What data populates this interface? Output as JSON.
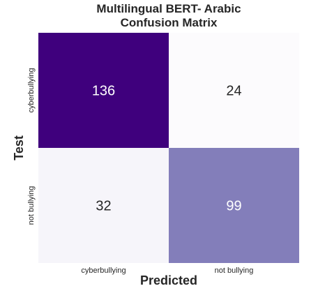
{
  "chart_data": {
    "type": "heatmap",
    "title_lines": [
      "Multilingual BERT- Arabic",
      "Confusion Matrix"
    ],
    "xlabel": "Predicted",
    "ylabel": "Test",
    "x_categories": [
      "cyberbullying",
      "not bullying"
    ],
    "y_categories": [
      "cyberbullying",
      "not bullying"
    ],
    "values": [
      [
        136,
        24
      ],
      [
        32,
        99
      ]
    ],
    "colormap": "Purples",
    "colorbar": false,
    "annotated": true,
    "colors": {
      "cell_136": "#3f007d",
      "cell_24": "#fcfbfd",
      "cell_32": "#f4f3f9",
      "cell_99": "#7670b3",
      "text_dark": "#262626",
      "text_light": "#ffffff"
    }
  }
}
